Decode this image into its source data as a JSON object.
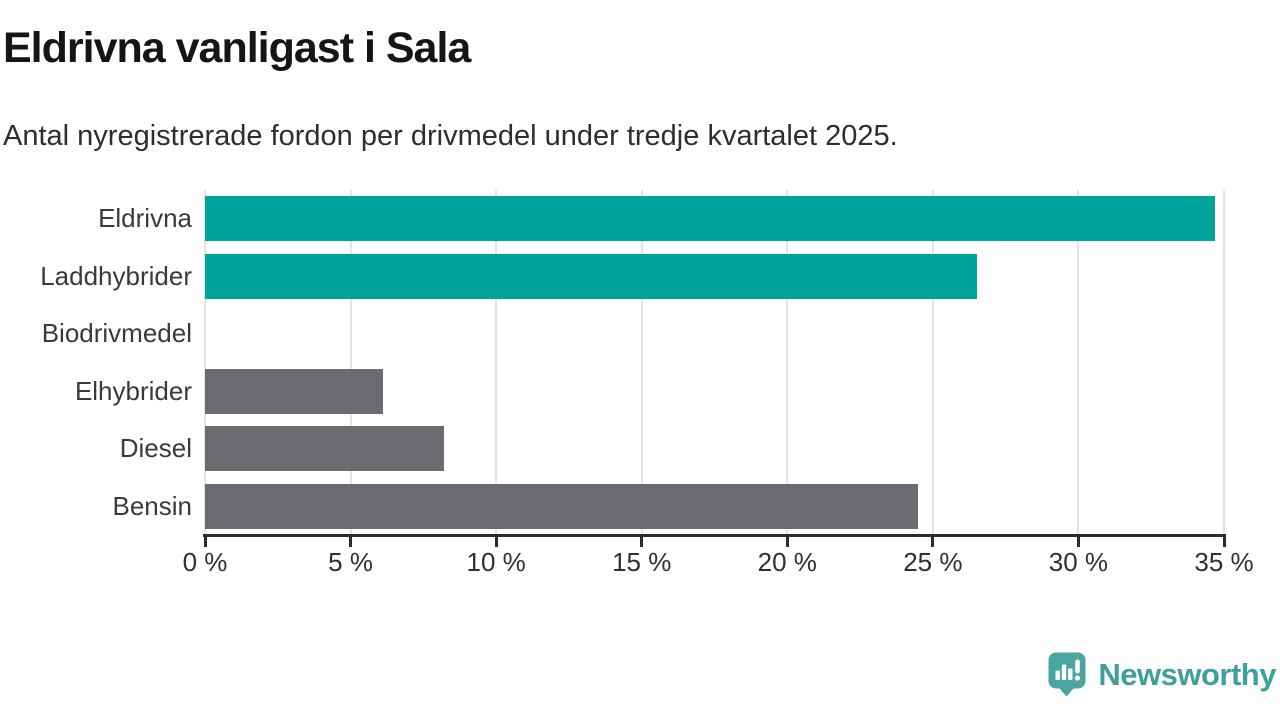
{
  "title": "Eldrivna vanligast i Sala",
  "subtitle": "Antal nyregistrerade fordon per drivmedel under tredje kvartalet 2025.",
  "colors": {
    "highlight_bar": "#00a39a",
    "default_bar": "#6b6b70",
    "gridline": "#e4e4e4",
    "axis": "#2b2b2b",
    "logo_teal": "#4aa4a0",
    "logo_text_teal": "#3f9f9b"
  },
  "chart_data": {
    "type": "bar",
    "orientation": "horizontal",
    "title": "Eldrivna vanligast i Sala",
    "subtitle": "Antal nyregistrerade fordon per drivmedel under tredje kvartalet 2025.",
    "xlabel": "",
    "ylabel": "",
    "categories": [
      "Eldrivna",
      "Laddhybrider",
      "Biodrivmedel",
      "Elhybrider",
      "Diesel",
      "Bensin"
    ],
    "values": [
      34.7,
      26.5,
      0,
      6.1,
      8.2,
      24.5
    ],
    "bar_colors": [
      "#00a39a",
      "#00a39a",
      "#00a39a",
      "#6b6b70",
      "#6b6b70",
      "#6b6b70"
    ],
    "unit": "%",
    "xlim": [
      0,
      35
    ],
    "x_ticks": [
      0,
      5,
      10,
      15,
      20,
      25,
      30,
      35
    ],
    "x_tick_labels": [
      "0 %",
      "5 %",
      "10 %",
      "15 %",
      "20 %",
      "25 %",
      "30 %",
      "35 %"
    ],
    "grid": "vertical-gridlines",
    "legend": "none"
  },
  "footer": {
    "brand": "Newsworthy",
    "brand_icon": "newsworthy-chart-bubble-icon"
  }
}
